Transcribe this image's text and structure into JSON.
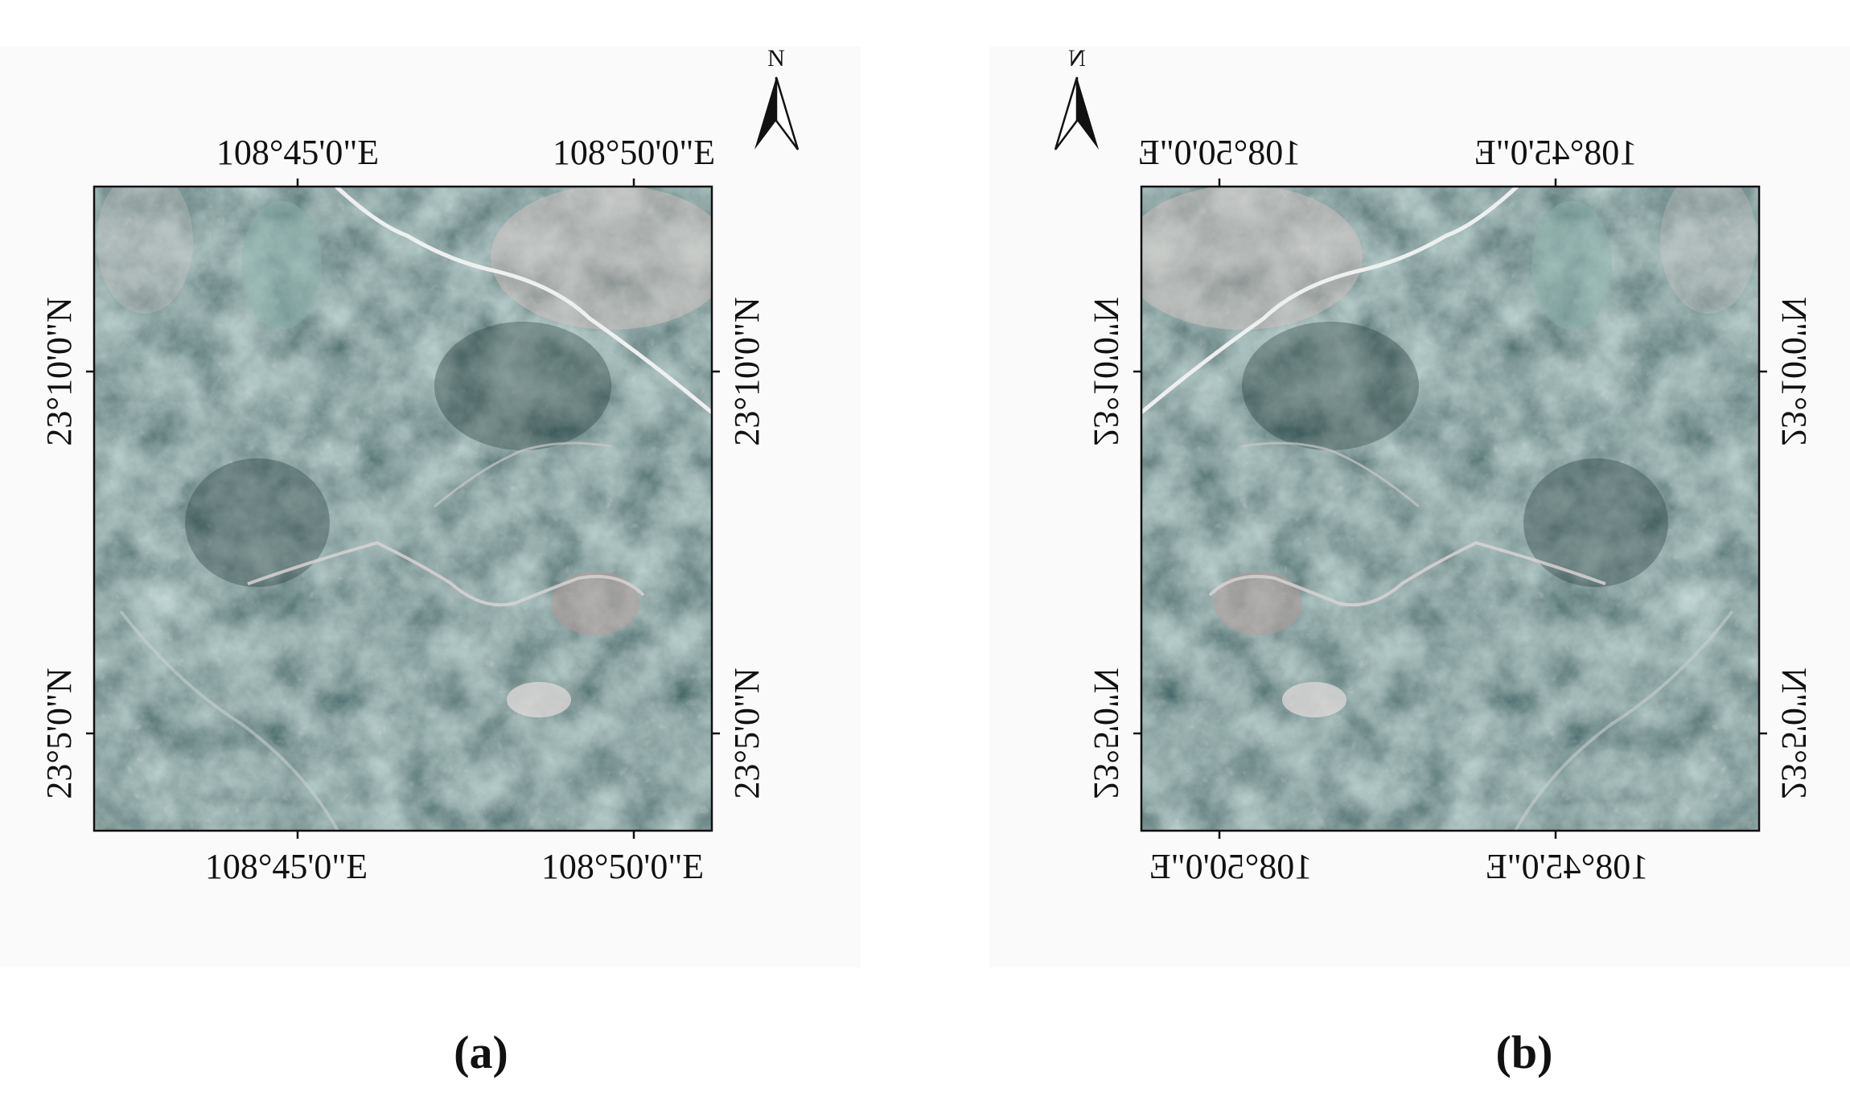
{
  "panels": [
    {
      "caption": "(a)",
      "north": "N",
      "top_labels": [
        "108°45'0\"E",
        "108°50'0\"E"
      ],
      "bottom_labels": [
        "108°45'0\"E",
        "108°50'0\"E"
      ],
      "left_labels": [
        "23°10'0\"N",
        "23°5'0\"N"
      ],
      "right_labels": [
        "23°10'0\"N",
        "23°5'0\"N"
      ]
    },
    {
      "caption": "(b)",
      "north": "N",
      "top_labels": [
        "108°45'0\"E",
        "108°50'0\"E"
      ],
      "bottom_labels": [
        "108°45'0\"E",
        "108°50'0\"E"
      ],
      "left_labels": [
        "23°10'0\"N",
        "23°5'0\"N"
      ],
      "right_labels": [
        "23°10'0\"N",
        "23°5'0\"N"
      ]
    }
  ]
}
